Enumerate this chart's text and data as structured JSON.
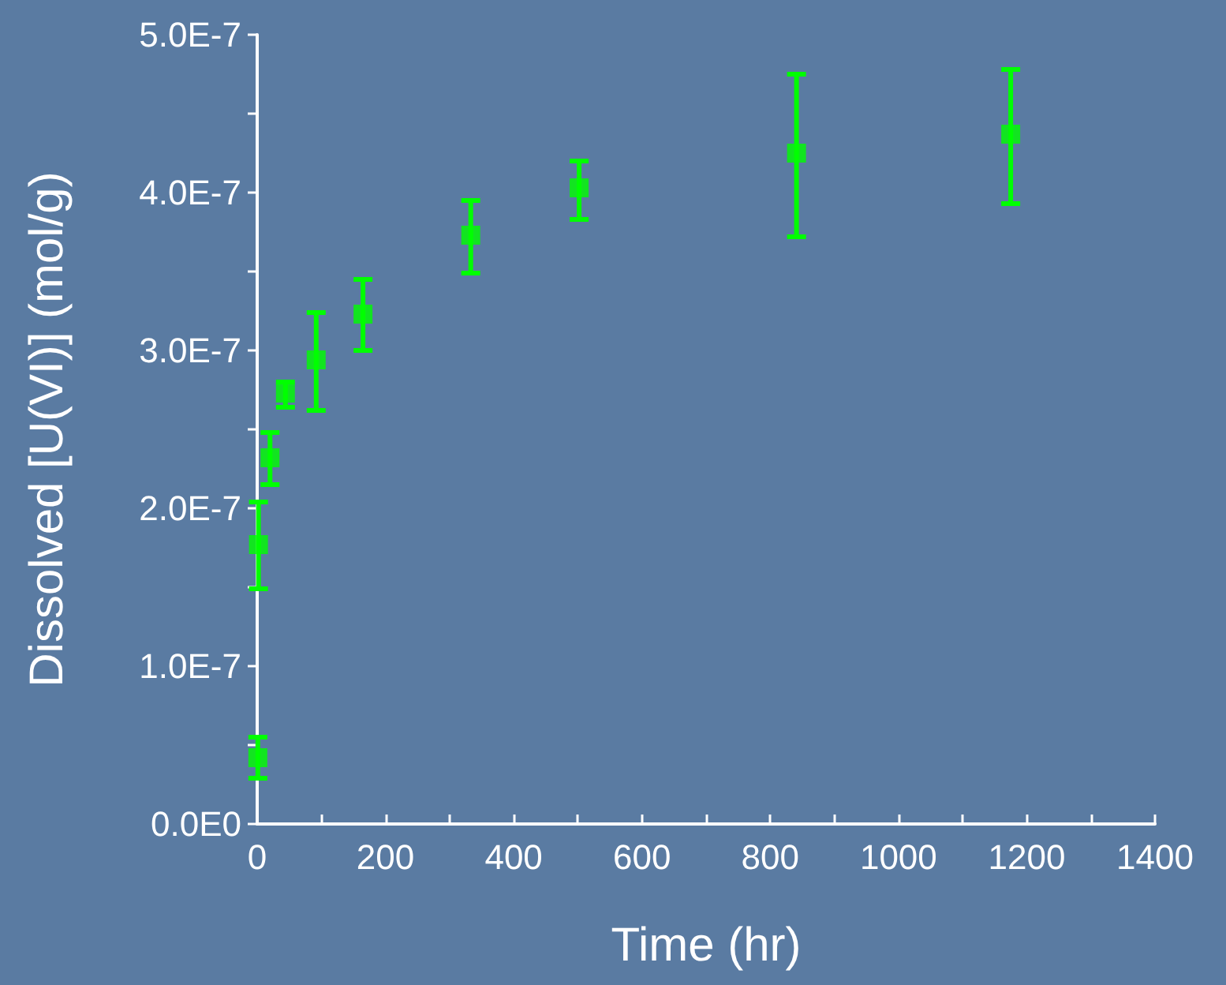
{
  "chart_data": {
    "type": "scatter",
    "xlabel": "Time (hr)",
    "ylabel": "Dissolved [U(VI)] (mol/g)",
    "x": [
      1,
      2,
      20,
      44,
      92,
      165,
      333,
      502,
      841,
      1175
    ],
    "series": [
      {
        "color": "#00ff00",
        "values": [
          4.2e-08,
          1.77e-07,
          2.32e-07,
          2.73e-07,
          2.94e-07,
          3.23e-07,
          3.73e-07,
          4.03e-07,
          4.25e-07,
          4.37e-07
        ],
        "errors": [
          [
            2.9e-08,
            5.5e-08
          ],
          [
            1.49e-07,
            2.04e-07
          ],
          [
            2.15e-07,
            2.48e-07
          ],
          [
            2.64e-07,
            2.8e-07
          ],
          [
            2.62e-07,
            3.24e-07
          ],
          [
            3e-07,
            3.45e-07
          ],
          [
            3.49e-07,
            3.95e-07
          ],
          [
            3.83e-07,
            4.2e-07
          ],
          [
            3.72e-07,
            4.75e-07
          ],
          [
            3.93e-07,
            4.78e-07
          ]
        ]
      }
    ],
    "xlim": [
      0,
      1400
    ],
    "xticks": [
      0,
      {
        "value": 100,
        "label": null
      },
      200,
      {
        "value": 300,
        "label": null
      },
      400,
      {
        "value": 500,
        "label": null
      },
      600,
      {
        "value": 700,
        "label": null
      },
      800,
      {
        "value": 900,
        "label": null
      },
      1000,
      {
        "value": 1100,
        "label": null
      },
      1200,
      {
        "value": 1300,
        "label": null
      },
      1400
    ],
    "ylim": [
      0,
      5e-07
    ],
    "yticks": [
      {
        "value": 0,
        "label": "0.0E0"
      },
      {
        "value": 5e-08,
        "label": null
      },
      {
        "value": 1e-07,
        "label": "1.0E-7"
      },
      {
        "value": 1.5e-07,
        "label": null
      },
      {
        "value": 2e-07,
        "label": "2.0E-7"
      },
      {
        "value": 2.5e-07,
        "label": null
      },
      {
        "value": 3e-07,
        "label": "3.0E-7"
      },
      {
        "value": 3.5e-07,
        "label": null
      },
      {
        "value": 4e-07,
        "label": "4.0E-7"
      },
      {
        "value": 4.5e-07,
        "label": null
      },
      {
        "value": 5e-07,
        "label": "5.0E-7"
      }
    ],
    "marker": "square"
  }
}
